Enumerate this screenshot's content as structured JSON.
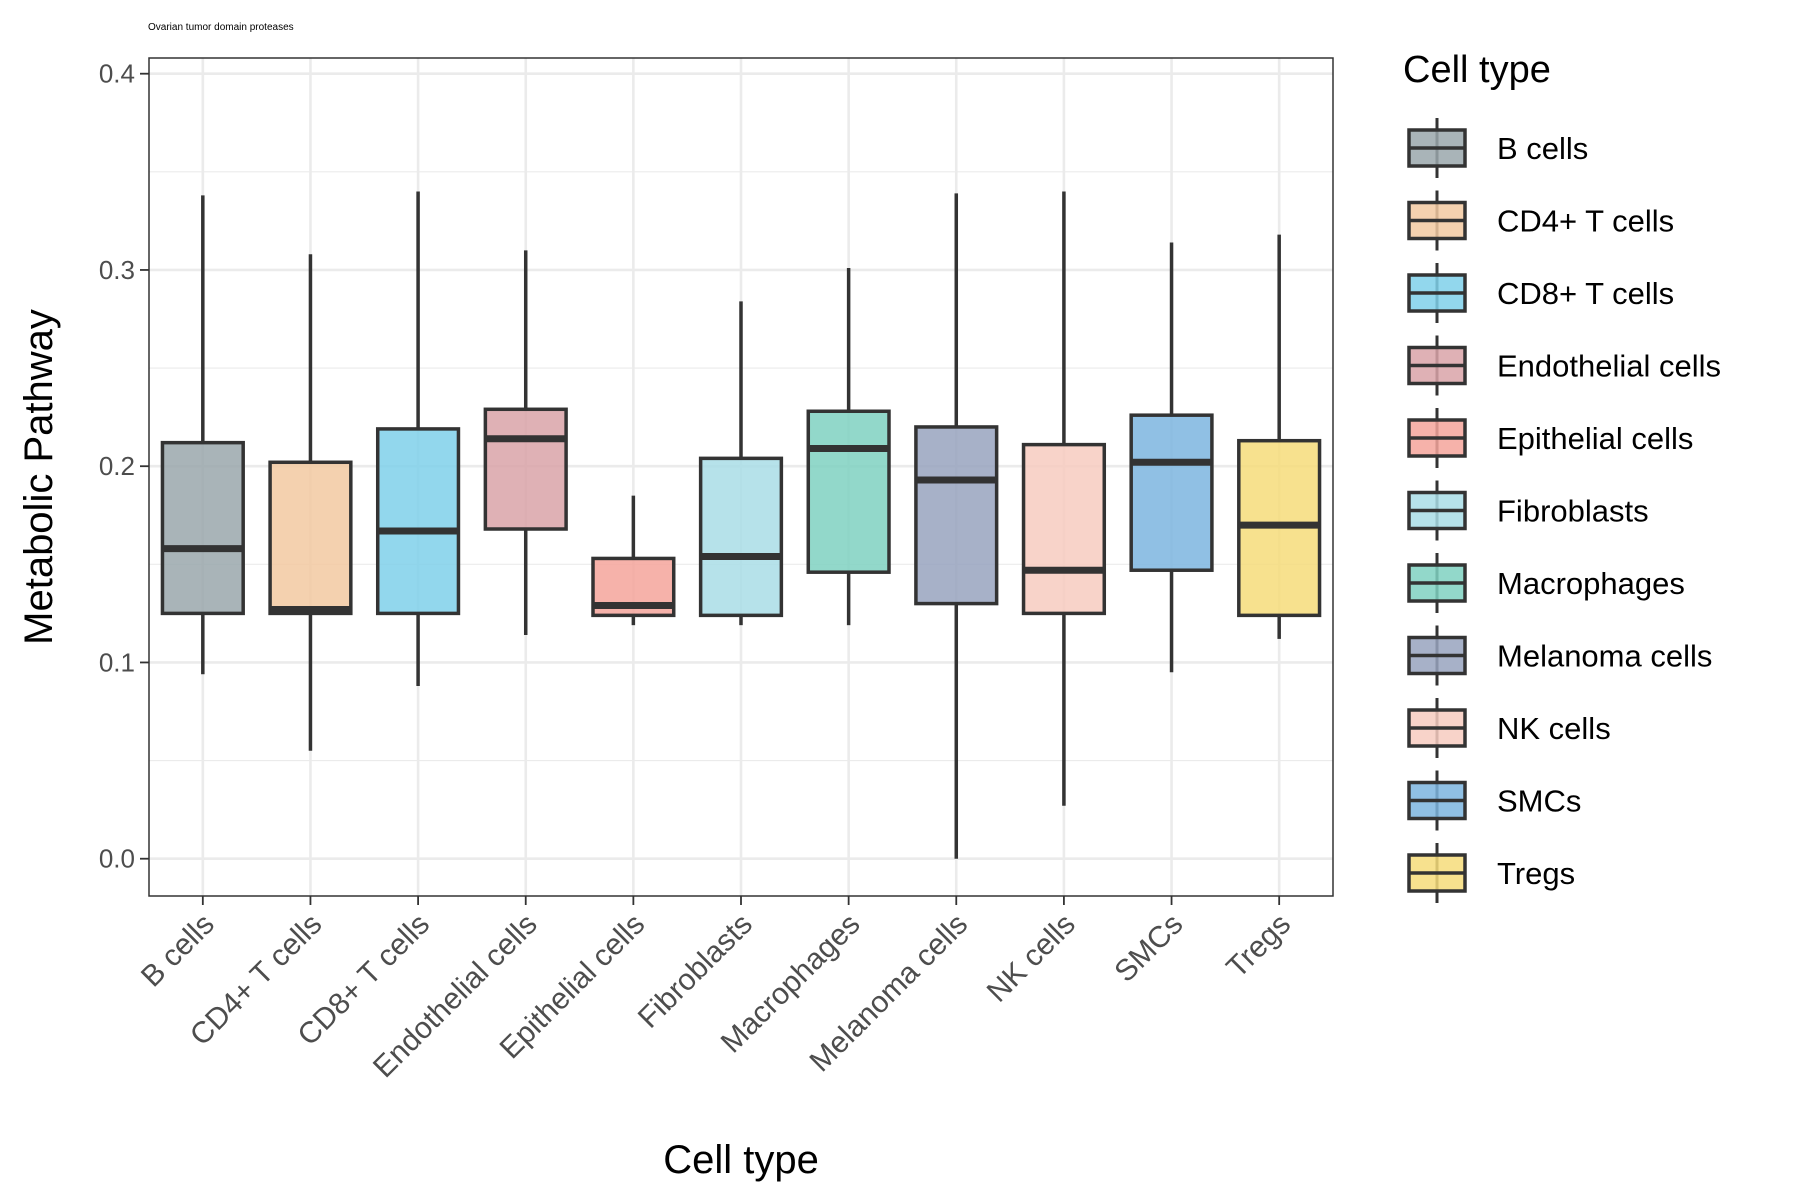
{
  "chart_data": {
    "type": "boxplot",
    "title": "Ovarian tumor domain proteases",
    "xlabel": "Cell type",
    "ylabel": "Metabolic Pathway",
    "ylim": [
      -0.019,
      0.408
    ],
    "y_ticks": [
      "0.0",
      "0.1",
      "0.2",
      "0.3",
      "0.4"
    ],
    "y_tick_values": [
      0.0,
      0.1,
      0.2,
      0.3,
      0.4
    ],
    "grid": true,
    "legend": {
      "title": "Cell type",
      "position": "right"
    },
    "categories": [
      "B cells",
      "CD4+ T cells",
      "CD8+ T cells",
      "Endothelial cells",
      "Epithelial cells",
      "Fibroblasts",
      "Macrophages",
      "Melanoma cells",
      "NK cells",
      "SMCs",
      "Tregs"
    ],
    "series": [
      {
        "name": "B cells",
        "color": "#9aa7ab",
        "min": 0.094,
        "q1": 0.125,
        "median": 0.158,
        "q3": 0.212,
        "max": 0.338
      },
      {
        "name": "CD4+ T cells",
        "color": "#f2c9a1",
        "min": 0.055,
        "q1": 0.125,
        "median": 0.127,
        "q3": 0.202,
        "max": 0.308
      },
      {
        "name": "CD8+ T cells",
        "color": "#7fd0ea",
        "min": 0.088,
        "q1": 0.125,
        "median": 0.167,
        "q3": 0.219,
        "max": 0.34
      },
      {
        "name": "Endothelial cells",
        "color": "#d9a3a8",
        "min": 0.114,
        "q1": 0.168,
        "median": 0.214,
        "q3": 0.229,
        "max": 0.31
      },
      {
        "name": "Epithelial cells",
        "color": "#f5a49b",
        "min": 0.119,
        "q1": 0.124,
        "median": 0.129,
        "q3": 0.153,
        "max": 0.185
      },
      {
        "name": "Fibroblasts",
        "color": "#a9dde6",
        "min": 0.119,
        "q1": 0.124,
        "median": 0.154,
        "q3": 0.204,
        "max": 0.284
      },
      {
        "name": "Macrophages",
        "color": "#7fd1c1",
        "min": 0.119,
        "q1": 0.146,
        "median": 0.209,
        "q3": 0.228,
        "max": 0.301
      },
      {
        "name": "Melanoma cells",
        "color": "#98a3be",
        "min": 0.0,
        "q1": 0.13,
        "median": 0.193,
        "q3": 0.22,
        "max": 0.339
      },
      {
        "name": "NK cells",
        "color": "#f7cbc0",
        "min": 0.027,
        "q1": 0.125,
        "median": 0.147,
        "q3": 0.211,
        "max": 0.34
      },
      {
        "name": "SMCs",
        "color": "#7db5df",
        "min": 0.095,
        "q1": 0.147,
        "median": 0.202,
        "q3": 0.226,
        "max": 0.314
      },
      {
        "name": "Tregs",
        "color": "#f6dc7a",
        "min": 0.112,
        "q1": 0.124,
        "median": 0.17,
        "q3": 0.213,
        "max": 0.318
      }
    ]
  }
}
